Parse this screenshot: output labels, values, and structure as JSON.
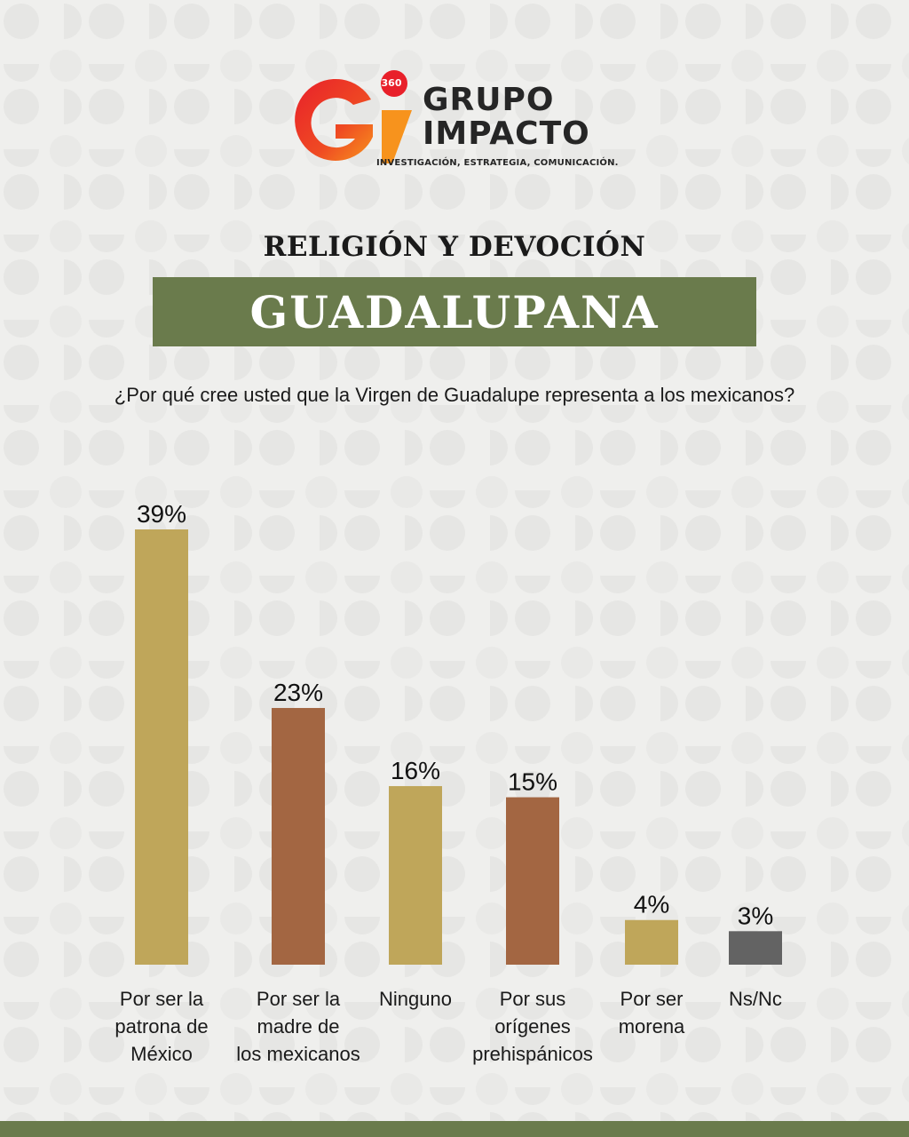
{
  "brand": {
    "badge": "360",
    "line1": "GRUPO",
    "line2": "IMPACTO",
    "tagline": "INVESTIGACIÓN, ESTRATEGIA, COMUNICACIÓN."
  },
  "header": {
    "title_1": "RELIGIÓN Y DEVOCIÓN",
    "title_2": "GUADALUPANA",
    "question": "¿Por qué cree usted que la Virgen de Guadalupe representa a los mexicanos?"
  },
  "colors": {
    "gold": "#bfa65a",
    "brown": "#a36642",
    "gray": "#636363",
    "green": "#6a7b4c"
  },
  "chart_data": {
    "type": "bar",
    "title": "",
    "xlabel": "",
    "ylabel": "",
    "ylim": [
      0,
      39
    ],
    "categories": [
      [
        "Por ser la",
        "patrona de",
        "México"
      ],
      [
        "Por ser la",
        "madre de",
        "los mexicanos"
      ],
      [
        "Ninguno"
      ],
      [
        "Por sus",
        "orígenes",
        "prehispánicos"
      ],
      [
        "Por ser",
        "morena"
      ],
      [
        "Ns/Nc"
      ]
    ],
    "values": [
      39,
      23,
      16,
      15,
      4,
      3
    ],
    "value_labels": [
      "39%",
      "23%",
      "16%",
      "15%",
      "4%",
      "3%"
    ],
    "bar_colors": [
      "#bfa65a",
      "#a36642",
      "#bfa65a",
      "#a36642",
      "#bfa65a",
      "#636363"
    ],
    "legend": "none",
    "grid": false
  }
}
